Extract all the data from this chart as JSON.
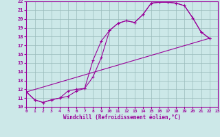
{
  "xlabel": "Windchill (Refroidissement éolien,°C)",
  "xlim": [
    0,
    23
  ],
  "ylim": [
    10,
    22
  ],
  "xticks": [
    0,
    1,
    2,
    3,
    4,
    5,
    6,
    7,
    8,
    9,
    10,
    11,
    12,
    13,
    14,
    15,
    16,
    17,
    18,
    19,
    20,
    21,
    22,
    23
  ],
  "yticks": [
    10,
    11,
    12,
    13,
    14,
    15,
    16,
    17,
    18,
    19,
    20,
    21,
    22
  ],
  "bg_color": "#cce8e8",
  "line_color": "#990099",
  "grid_color": "#99bbbb",
  "line1_x": [
    0,
    1,
    2,
    3,
    4,
    5,
    6,
    7,
    8,
    9,
    10,
    11,
    12,
    13,
    14,
    15,
    16,
    17,
    18,
    19,
    20,
    21,
    22
  ],
  "line1_y": [
    11.7,
    10.8,
    10.5,
    10.8,
    11.0,
    11.8,
    12.0,
    12.1,
    15.3,
    17.5,
    18.7,
    19.5,
    19.8,
    19.6,
    20.5,
    21.8,
    21.9,
    21.9,
    21.8,
    21.5,
    20.1,
    18.5,
    17.8
  ],
  "line2_x": [
    0,
    1,
    2,
    3,
    4,
    5,
    6,
    7,
    8,
    9,
    10,
    11,
    12,
    13,
    14,
    15,
    16,
    17,
    18,
    19,
    20,
    21,
    22
  ],
  "line2_y": [
    11.7,
    10.8,
    10.5,
    10.8,
    11.0,
    11.2,
    11.8,
    12.1,
    13.4,
    15.6,
    18.7,
    19.5,
    19.8,
    19.6,
    20.5,
    21.8,
    21.9,
    21.9,
    21.8,
    21.5,
    20.1,
    18.5,
    17.8
  ],
  "line3_x": [
    0,
    22
  ],
  "line3_y": [
    11.7,
    17.8
  ]
}
